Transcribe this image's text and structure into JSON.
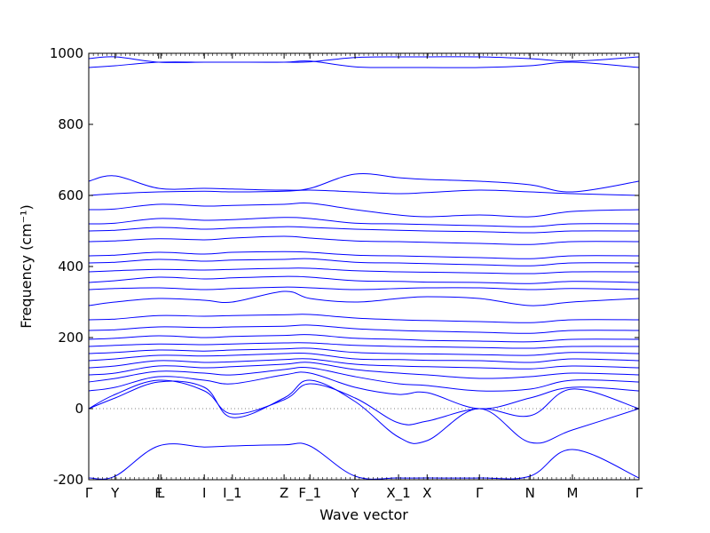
{
  "chart_data": {
    "type": "line",
    "xlabel": "Wave vector",
    "ylabel": "Frequency (cm⁻¹)",
    "ylim": [
      -200,
      1000
    ],
    "yticks": [
      -200,
      0,
      200,
      400,
      600,
      800,
      1000
    ],
    "grid": false,
    "legend": "none",
    "line_color": "#0000ff",
    "zero_line_color": "#808080",
    "xlim": [
      0,
      1
    ],
    "high_symmetry_points": [
      {
        "label": "Γ",
        "x": 0.0
      },
      {
        "label": "Y",
        "x": 0.048
      },
      {
        "label": "F",
        "x": 0.127
      },
      {
        "label": "L",
        "x": 0.131
      },
      {
        "label": "I",
        "x": 0.21
      },
      {
        "label": "I_1",
        "x": 0.261
      },
      {
        "label": "Z",
        "x": 0.355
      },
      {
        "label": "F_1",
        "x": 0.402
      },
      {
        "label": "Y",
        "x": 0.484
      },
      {
        "label": "X_1",
        "x": 0.563
      },
      {
        "label": "X",
        "x": 0.615
      },
      {
        "label": "Γ",
        "x": 0.71
      },
      {
        "label": "N",
        "x": 0.802
      },
      {
        "label": "M",
        "x": 0.879
      },
      {
        "label": "Γ",
        "x": 1.0
      }
    ],
    "series": [
      {
        "x": [
          0,
          0.048,
          0.127,
          0.21,
          0.261,
          0.355,
          0.402,
          0.484,
          0.563,
          0.615,
          0.71,
          0.802,
          0.879,
          1.0
        ],
        "values": [
          -195,
          -190,
          -105,
          -108,
          -105,
          -102,
          -105,
          -190,
          -195,
          -195,
          -195,
          -190,
          -115,
          -195
        ]
      },
      {
        "x": [
          0,
          0.048,
          0.127,
          0.21,
          0.261,
          0.355,
          0.402,
          0.484,
          0.563,
          0.615,
          0.71,
          0.802,
          0.879,
          1.0
        ],
        "values": [
          0,
          30,
          75,
          60,
          -25,
          30,
          80,
          20,
          -80,
          -90,
          0,
          -95,
          -60,
          0
        ]
      },
      {
        "x": [
          0,
          0.048,
          0.127,
          0.21,
          0.261,
          0.355,
          0.402,
          0.484,
          0.563,
          0.615,
          0.71,
          0.802,
          0.879,
          1.0
        ],
        "values": [
          0,
          40,
          80,
          50,
          -15,
          25,
          70,
          30,
          -40,
          -35,
          0,
          -20,
          55,
          0
        ]
      },
      {
        "x": [
          0,
          0.048,
          0.127,
          0.21,
          0.261,
          0.355,
          0.402,
          0.484,
          0.563,
          0.615,
          0.71,
          0.802,
          0.879,
          1.0
        ],
        "values": [
          50,
          60,
          90,
          80,
          70,
          95,
          100,
          60,
          40,
          45,
          0,
          30,
          60,
          50
        ]
      },
      {
        "x": [
          0,
          0.048,
          0.127,
          0.21,
          0.261,
          0.355,
          0.402,
          0.484,
          0.563,
          0.615,
          0.71,
          0.802,
          0.879,
          1.0
        ],
        "values": [
          75,
          85,
          105,
          100,
          95,
          110,
          115,
          90,
          70,
          65,
          50,
          55,
          80,
          75
        ]
      },
      {
        "x": [
          0,
          0.048,
          0.127,
          0.21,
          0.261,
          0.355,
          0.402,
          0.484,
          0.563,
          0.615,
          0.71,
          0.802,
          0.879,
          1.0
        ],
        "values": [
          95,
          100,
          120,
          115,
          118,
          125,
          130,
          110,
          100,
          95,
          85,
          90,
          100,
          95
        ]
      },
      {
        "x": [
          0,
          0.048,
          0.127,
          0.21,
          0.261,
          0.355,
          0.402,
          0.484,
          0.563,
          0.615,
          0.71,
          0.802,
          0.879,
          1.0
        ],
        "values": [
          115,
          120,
          135,
          130,
          132,
          138,
          140,
          125,
          120,
          118,
          115,
          112,
          120,
          115
        ]
      },
      {
        "x": [
          0,
          0.048,
          0.127,
          0.21,
          0.261,
          0.355,
          0.402,
          0.484,
          0.563,
          0.615,
          0.71,
          0.802,
          0.879,
          1.0
        ],
        "values": [
          135,
          140,
          150,
          148,
          150,
          155,
          155,
          140,
          138,
          136,
          135,
          130,
          140,
          135
        ]
      },
      {
        "x": [
          0,
          0.048,
          0.127,
          0.21,
          0.261,
          0.355,
          0.402,
          0.484,
          0.563,
          0.615,
          0.71,
          0.802,
          0.879,
          1.0
        ],
        "values": [
          155,
          158,
          165,
          162,
          165,
          168,
          170,
          158,
          155,
          154,
          152,
          150,
          158,
          155
        ]
      },
      {
        "x": [
          0,
          0.048,
          0.127,
          0.21,
          0.261,
          0.355,
          0.402,
          0.484,
          0.563,
          0.615,
          0.71,
          0.802,
          0.879,
          1.0
        ],
        "values": [
          175,
          178,
          182,
          180,
          182,
          185,
          185,
          178,
          175,
          174,
          172,
          170,
          175,
          175
        ]
      },
      {
        "x": [
          0,
          0.048,
          0.127,
          0.21,
          0.261,
          0.355,
          0.402,
          0.484,
          0.563,
          0.615,
          0.71,
          0.802,
          0.879,
          1.0
        ],
        "values": [
          195,
          198,
          205,
          200,
          203,
          206,
          208,
          198,
          195,
          192,
          190,
          188,
          195,
          195
        ]
      },
      {
        "x": [
          0,
          0.048,
          0.127,
          0.21,
          0.261,
          0.355,
          0.402,
          0.484,
          0.563,
          0.615,
          0.71,
          0.802,
          0.879,
          1.0
        ],
        "values": [
          220,
          222,
          230,
          228,
          230,
          232,
          235,
          225,
          220,
          218,
          215,
          212,
          220,
          220
        ]
      },
      {
        "x": [
          0,
          0.048,
          0.127,
          0.21,
          0.261,
          0.355,
          0.402,
          0.484,
          0.563,
          0.615,
          0.71,
          0.802,
          0.879,
          1.0
        ],
        "values": [
          250,
          252,
          262,
          260,
          262,
          264,
          265,
          255,
          250,
          248,
          245,
          242,
          250,
          250
        ]
      },
      {
        "x": [
          0,
          0.048,
          0.127,
          0.21,
          0.261,
          0.355,
          0.402,
          0.484,
          0.563,
          0.615,
          0.71,
          0.802,
          0.879,
          1.0
        ],
        "values": [
          290,
          300,
          310,
          305,
          300,
          330,
          310,
          300,
          310,
          315,
          310,
          290,
          300,
          310
        ]
      },
      {
        "x": [
          0,
          0.048,
          0.127,
          0.21,
          0.261,
          0.355,
          0.402,
          0.484,
          0.563,
          0.615,
          0.71,
          0.802,
          0.879,
          1.0
        ],
        "values": [
          335,
          338,
          340,
          335,
          338,
          342,
          340,
          335,
          338,
          340,
          340,
          335,
          338,
          335
        ]
      },
      {
        "x": [
          0,
          0.048,
          0.127,
          0.21,
          0.261,
          0.355,
          0.402,
          0.484,
          0.563,
          0.615,
          0.71,
          0.802,
          0.879,
          1.0
        ],
        "values": [
          355,
          360,
          370,
          365,
          368,
          372,
          370,
          360,
          358,
          356,
          355,
          352,
          358,
          355
        ]
      },
      {
        "x": [
          0,
          0.048,
          0.127,
          0.21,
          0.261,
          0.355,
          0.402,
          0.484,
          0.563,
          0.615,
          0.71,
          0.802,
          0.879,
          1.0
        ],
        "values": [
          385,
          388,
          392,
          390,
          392,
          395,
          395,
          388,
          385,
          384,
          382,
          380,
          385,
          385
        ]
      },
      {
        "x": [
          0,
          0.048,
          0.127,
          0.21,
          0.261,
          0.355,
          0.402,
          0.484,
          0.563,
          0.615,
          0.71,
          0.802,
          0.879,
          1.0
        ],
        "values": [
          410,
          412,
          420,
          415,
          418,
          420,
          422,
          412,
          410,
          408,
          405,
          402,
          410,
          410
        ]
      },
      {
        "x": [
          0,
          0.048,
          0.127,
          0.21,
          0.261,
          0.355,
          0.402,
          0.484,
          0.563,
          0.615,
          0.71,
          0.802,
          0.879,
          1.0
        ],
        "values": [
          430,
          432,
          440,
          435,
          440,
          442,
          440,
          432,
          430,
          428,
          425,
          422,
          430,
          430
        ]
      },
      {
        "x": [
          0,
          0.048,
          0.127,
          0.21,
          0.261,
          0.355,
          0.402,
          0.484,
          0.563,
          0.615,
          0.71,
          0.802,
          0.879,
          1.0
        ],
        "values": [
          470,
          472,
          478,
          475,
          480,
          485,
          480,
          472,
          470,
          468,
          465,
          462,
          470,
          470
        ]
      },
      {
        "x": [
          0,
          0.048,
          0.127,
          0.21,
          0.261,
          0.355,
          0.402,
          0.484,
          0.563,
          0.615,
          0.71,
          0.802,
          0.879,
          1.0
        ],
        "values": [
          500,
          502,
          510,
          505,
          508,
          512,
          510,
          505,
          502,
          500,
          498,
          495,
          500,
          500
        ]
      },
      {
        "x": [
          0,
          0.048,
          0.127,
          0.21,
          0.261,
          0.355,
          0.402,
          0.484,
          0.563,
          0.615,
          0.71,
          0.802,
          0.879,
          1.0
        ],
        "values": [
          520,
          522,
          535,
          530,
          532,
          538,
          535,
          522,
          520,
          518,
          515,
          512,
          520,
          520
        ]
      },
      {
        "x": [
          0,
          0.048,
          0.127,
          0.21,
          0.261,
          0.355,
          0.402,
          0.484,
          0.563,
          0.615,
          0.71,
          0.802,
          0.879,
          1.0
        ],
        "values": [
          560,
          562,
          575,
          570,
          572,
          575,
          578,
          560,
          545,
          540,
          545,
          540,
          555,
          560
        ]
      },
      {
        "x": [
          0,
          0.048,
          0.127,
          0.21,
          0.261,
          0.355,
          0.402,
          0.484,
          0.563,
          0.615,
          0.71,
          0.802,
          0.879,
          1.0
        ],
        "values": [
          600,
          605,
          610,
          612,
          610,
          612,
          615,
          610,
          605,
          608,
          615,
          610,
          605,
          600
        ]
      },
      {
        "x": [
          0,
          0.048,
          0.127,
          0.21,
          0.261,
          0.355,
          0.402,
          0.484,
          0.563,
          0.615,
          0.71,
          0.802,
          0.879,
          1.0
        ],
        "values": [
          640,
          655,
          620,
          620,
          618,
          615,
          620,
          660,
          650,
          645,
          640,
          630,
          610,
          640
        ]
      },
      {
        "x": [
          0,
          0.048,
          0.127,
          0.21,
          0.261,
          0.355,
          0.402,
          0.484,
          0.563,
          0.615,
          0.71,
          0.802,
          0.879,
          1.0
        ],
        "values": [
          960,
          965,
          975,
          975,
          975,
          975,
          978,
          962,
          960,
          960,
          960,
          965,
          975,
          960
        ]
      },
      {
        "x": [
          0,
          0.048,
          0.127,
          0.21,
          0.261,
          0.355,
          0.402,
          0.484,
          0.563,
          0.615,
          0.71,
          0.802,
          0.879,
          1.0
        ],
        "values": [
          985,
          990,
          975,
          975,
          975,
          975,
          976,
          988,
          990,
          990,
          990,
          985,
          978,
          990
        ]
      }
    ]
  }
}
